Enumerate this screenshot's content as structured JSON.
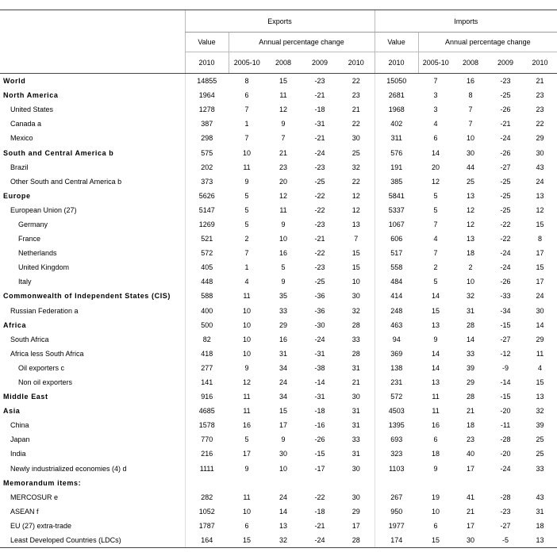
{
  "header": {
    "groups": [
      {
        "name": "Exports",
        "value": "Value",
        "change": "Annual percentage change",
        "years": [
          "2010",
          "2005-10",
          "2008",
          "2009",
          "2010"
        ]
      },
      {
        "name": "Imports",
        "value": "Value",
        "change": "Annual percentage change",
        "years": [
          "2010",
          "2005-10",
          "2008",
          "2009",
          "2010"
        ]
      }
    ]
  },
  "sections": [
    {
      "name": "World",
      "values": [
        14855,
        8,
        15,
        -23,
        22,
        15050,
        7,
        16,
        -23,
        21
      ]
    },
    {
      "name": "North America",
      "values": [
        1964,
        6,
        11,
        -21,
        23,
        2681,
        3,
        8,
        -25,
        23
      ],
      "items": [
        {
          "name": "United States",
          "values": [
            1278,
            7,
            12,
            -18,
            21,
            1968,
            3,
            7,
            -26,
            23
          ]
        },
        {
          "name": "Canada a",
          "values": [
            387,
            1,
            9,
            -31,
            22,
            402,
            4,
            7,
            -21,
            22
          ]
        },
        {
          "name": "Mexico",
          "values": [
            298,
            7,
            7,
            -21,
            30,
            311,
            6,
            10,
            -24,
            29
          ]
        }
      ]
    },
    {
      "name": "South and Central America b",
      "values": [
        575,
        10,
        21,
        -24,
        25,
        576,
        14,
        30,
        -26,
        30
      ],
      "items": [
        {
          "name": "Brazil",
          "values": [
            202,
            11,
            23,
            -23,
            32,
            191,
            20,
            44,
            -27,
            43
          ]
        },
        {
          "name": "Other South and Central America b",
          "values": [
            373,
            9,
            20,
            -25,
            22,
            385,
            12,
            25,
            -25,
            24
          ]
        }
      ]
    },
    {
      "name": "Europe",
      "values": [
        5626,
        5,
        12,
        -22,
        12,
        5841,
        5,
        13,
        -25,
        13
      ],
      "items": [
        {
          "name": "European Union (27)",
          "values": [
            5147,
            5,
            11,
            -22,
            12,
            5337,
            5,
            12,
            -25,
            12
          ],
          "items": [
            {
              "name": "Germany",
              "values": [
                1269,
                5,
                9,
                -23,
                13,
                1067,
                7,
                12,
                -22,
                15
              ]
            },
            {
              "name": "France",
              "values": [
                521,
                2,
                10,
                -21,
                7,
                606,
                4,
                13,
                -22,
                8
              ]
            },
            {
              "name": "Netherlands",
              "values": [
                572,
                7,
                16,
                -22,
                15,
                517,
                7,
                18,
                -24,
                17
              ]
            },
            {
              "name": "United Kingdom",
              "values": [
                405,
                1,
                5,
                -23,
                15,
                558,
                2,
                2,
                -24,
                15
              ]
            },
            {
              "name": "Italy",
              "values": [
                448,
                4,
                9,
                -25,
                10,
                484,
                5,
                10,
                -26,
                17
              ]
            }
          ]
        }
      ]
    },
    {
      "name": "Commonwealth of Independent States (CIS)",
      "values": [
        588,
        11,
        35,
        -36,
        30,
        414,
        14,
        32,
        -33,
        24
      ],
      "items": [
        {
          "name": "Russian Federation a",
          "values": [
            400,
            10,
            33,
            -36,
            32,
            248,
            15,
            31,
            -34,
            30
          ]
        }
      ]
    },
    {
      "name": "Africa",
      "values": [
        500,
        10,
        29,
        -30,
        28,
        463,
        13,
        28,
        -15,
        14
      ],
      "items": [
        {
          "name": "South Africa",
          "values": [
            82,
            10,
            16,
            -24,
            33,
            94,
            9,
            14,
            -27,
            29
          ]
        },
        {
          "name": "Africa less South Africa",
          "values": [
            418,
            10,
            31,
            -31,
            28,
            369,
            14,
            33,
            -12,
            11
          ],
          "items": [
            {
              "name": "Oil exporters c",
              "values": [
                277,
                9,
                34,
                -38,
                31,
                138,
                14,
                39,
                -9,
                4
              ]
            },
            {
              "name": "Non oil exporters",
              "values": [
                141,
                12,
                24,
                -14,
                21,
                231,
                13,
                29,
                -14,
                15
              ]
            }
          ]
        }
      ]
    },
    {
      "name": "Middle East",
      "values": [
        916,
        11,
        34,
        -31,
        30,
        572,
        11,
        28,
        -15,
        13
      ]
    },
    {
      "name": "Asia",
      "values": [
        4685,
        11,
        15,
        -18,
        31,
        4503,
        11,
        21,
        -20,
        32
      ],
      "items": [
        {
          "name": "China",
          "values": [
            1578,
            16,
            17,
            -16,
            31,
            1395,
            16,
            18,
            -11,
            39
          ]
        },
        {
          "name": "Japan",
          "values": [
            770,
            5,
            9,
            -26,
            33,
            693,
            6,
            23,
            -28,
            25
          ]
        },
        {
          "name": "India",
          "values": [
            216,
            17,
            30,
            -15,
            31,
            323,
            18,
            40,
            -20,
            25
          ]
        },
        {
          "name": "Newly industrialized economies (4) d",
          "values": [
            1111,
            9,
            10,
            -17,
            30,
            1103,
            9,
            17,
            -24,
            33
          ]
        }
      ]
    },
    {
      "name": "Memorandum items:",
      "items": [
        {
          "name": "MERCOSUR e",
          "values": [
            282,
            11,
            24,
            -22,
            30,
            267,
            19,
            41,
            -28,
            43
          ]
        },
        {
          "name": "ASEAN f",
          "values": [
            1052,
            10,
            14,
            -18,
            29,
            950,
            10,
            21,
            -23,
            31
          ]
        },
        {
          "name": "EU (27) extra-trade",
          "values": [
            1787,
            6,
            13,
            -21,
            17,
            1977,
            6,
            17,
            -27,
            18
          ]
        },
        {
          "name": "Least Developed Countries (LDCs)",
          "values": [
            164,
            15,
            32,
            -24,
            28,
            174,
            15,
            30,
            -5,
            13
          ]
        }
      ]
    }
  ]
}
